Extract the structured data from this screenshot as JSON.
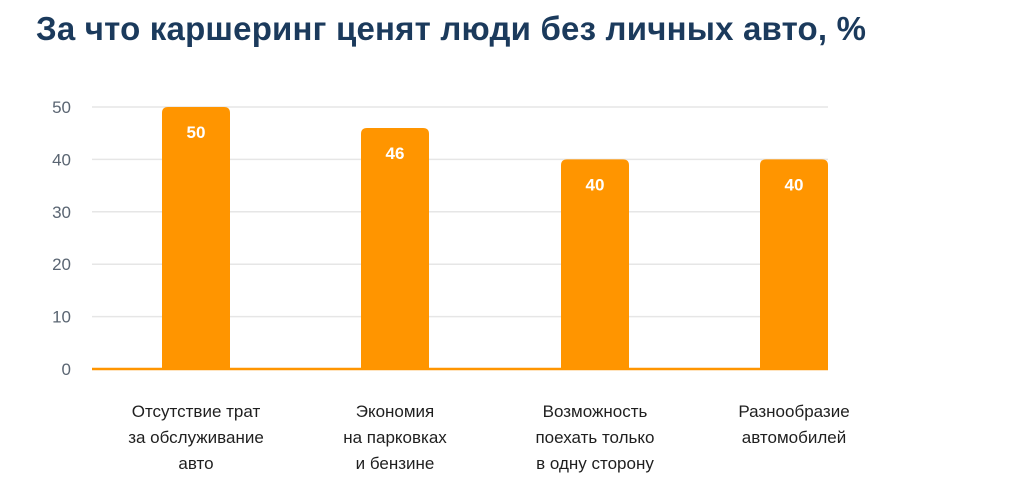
{
  "title": "За что каршеринг ценят люди без личных авто, %",
  "chart_data": {
    "type": "bar",
    "title": "За что каршеринг ценят люди без личных авто, %",
    "categories": [
      [
        "Отсутствие трат",
        "за обслуживание",
        "авто"
      ],
      [
        "Экономия",
        "на парковках",
        "и бензине"
      ],
      [
        "Возможность",
        "поехать только",
        "в одну сторону"
      ],
      [
        "Разнообразие",
        "автомобилей"
      ]
    ],
    "values": [
      50,
      46,
      40,
      40
    ],
    "data_labels": [
      "50",
      "46",
      "40",
      "40"
    ],
    "ylim": [
      0,
      50
    ],
    "yticks": [
      "0",
      "10",
      "20",
      "30",
      "40",
      "50"
    ],
    "xlabel": "",
    "ylabel": "",
    "grid": true,
    "legend": "none",
    "colors": {
      "bar": "#ff9500",
      "grid": "#e6e6e6",
      "title": "#1b3a5c"
    }
  }
}
